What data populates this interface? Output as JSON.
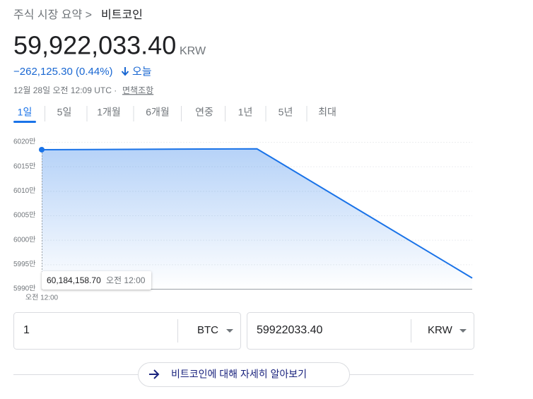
{
  "header": {
    "breadcrumb_parent": "주식 시장 요약 >",
    "breadcrumb_current": "비트코인",
    "price": "59,922,033.40",
    "currency": "KRW",
    "change": "−262,125.30 (0.44%)",
    "change_period": "오늘",
    "timestamp": "12월 28일 오전 12:09 UTC ·",
    "disclaimer": "면책조항"
  },
  "tabs": [
    "1일",
    "5일",
    "1개월",
    "6개월",
    "연중",
    "1년",
    "5년",
    "최대"
  ],
  "selected_tab": "1일",
  "chart_data": {
    "type": "line",
    "color": "#1a73e8",
    "categories": [
      "오전 12:00",
      null,
      null
    ],
    "values": [
      60184158.7,
      60186000,
      59922033.4
    ],
    "ylim": [
      59900000,
      60200000
    ],
    "yticks": [
      {
        "value": 59900000,
        "label": "5990만"
      },
      {
        "value": 59950000,
        "label": "5995만"
      },
      {
        "value": 60000000,
        "label": "6000만"
      },
      {
        "value": 60050000,
        "label": "6005만"
      },
      {
        "value": 60100000,
        "label": "6010만"
      },
      {
        "value": 60150000,
        "label": "6015만"
      },
      {
        "value": 60200000,
        "label": "6020만"
      }
    ],
    "grid": true,
    "tooltip": {
      "value": "60,184,158.70",
      "time": "오전 12:00"
    }
  },
  "converter": {
    "from_amount": "1",
    "from_unit": "BTC",
    "to_amount": "59922033.40",
    "to_unit": "KRW"
  },
  "learn_more": "비트코인에 대해 자세히 알아보기"
}
